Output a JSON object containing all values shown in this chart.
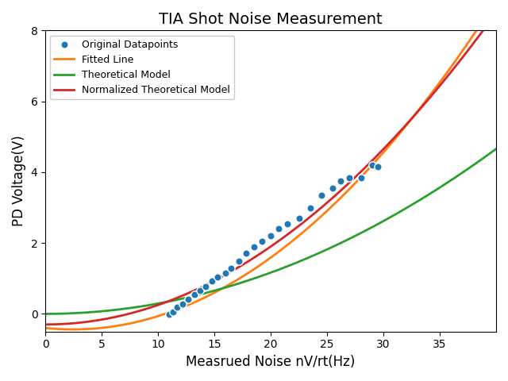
{
  "title": "TIA Shot Noise Measurement",
  "xlabel": "Measrued Noise nV/rt(Hz)",
  "ylabel": "PD Voltage(V)",
  "xlim": [
    0,
    40
  ],
  "ylim": [
    -0.5,
    8
  ],
  "scatter_x": [
    11.0,
    11.3,
    11.7,
    12.2,
    12.7,
    13.2,
    13.7,
    14.2,
    14.8,
    15.3,
    16.0,
    16.5,
    17.2,
    17.8,
    18.5,
    19.2,
    20.0,
    20.7,
    21.5,
    22.5,
    23.5,
    24.5,
    25.5,
    26.2,
    27.0,
    28.0,
    29.0,
    29.5
  ],
  "scatter_y": [
    -0.02,
    0.05,
    0.18,
    0.28,
    0.42,
    0.55,
    0.65,
    0.78,
    0.92,
    1.05,
    1.15,
    1.28,
    1.48,
    1.72,
    1.9,
    2.05,
    2.2,
    2.4,
    2.55,
    2.7,
    3.0,
    3.35,
    3.55,
    3.75,
    3.85,
    3.85,
    4.2,
    4.15
  ],
  "scatter_color": "#1f77b4",
  "scatter_edgecolor": "white",
  "scatter_size": 45,
  "fitted_color": "#ff7f0e",
  "theoretical_color": "#2ca02c",
  "normalized_color": "#d62728",
  "legend_labels": [
    "Original Datapoints",
    "Fitted Line",
    "Theoretical Model",
    "Normalized Theoretical Model"
  ],
  "title_fontsize": 14,
  "axis_label_fontsize": 12,
  "orange_a": 0.006579,
  "orange_b": -0.03218,
  "orange_c": -0.4,
  "green_A": 0.00291,
  "red_A": 1.85e-05,
  "red_n": 3.1
}
